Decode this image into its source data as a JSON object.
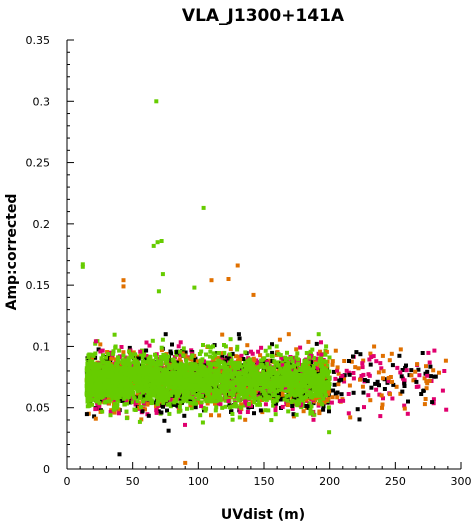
{
  "chart_data": {
    "type": "scatter",
    "title": "VLA_J1300+141A",
    "xlabel": "UVdist (m)",
    "ylabel": "Amp:corrected",
    "xlim": [
      0,
      300
    ],
    "ylim": [
      0,
      0.35
    ],
    "x_ticks": [
      0,
      50,
      100,
      150,
      200,
      250,
      300
    ],
    "x_tick_labels": [
      "0",
      "50",
      "100",
      "150",
      "200",
      "250",
      "300"
    ],
    "y_ticks": [
      0,
      0.05,
      0.1,
      0.15,
      0.2,
      0.25,
      0.3,
      0.35
    ],
    "y_tick_labels": [
      "0",
      "0.05",
      "0.1",
      "0.15",
      "0.2",
      "0.25",
      "0.3",
      "0.35"
    ],
    "grid": false,
    "colors": [
      "#000000",
      "#e0006e",
      "#e07000",
      "#66cc00"
    ],
    "distribution": {
      "x_range": [
        12,
        290
      ],
      "dense_x_range": [
        15,
        200
      ],
      "median_amp": 0.072,
      "core_amp_range": [
        0.045,
        0.1
      ]
    },
    "outliers": [
      {
        "x": 68,
        "y": 0.3,
        "color": "#66cc00"
      },
      {
        "x": 104,
        "y": 0.213,
        "color": "#66cc00"
      },
      {
        "x": 69,
        "y": 0.185,
        "color": "#66cc00"
      },
      {
        "x": 72,
        "y": 0.186,
        "color": "#66cc00"
      },
      {
        "x": 66,
        "y": 0.182,
        "color": "#66cc00"
      },
      {
        "x": 12,
        "y": 0.167,
        "color": "#66cc00"
      },
      {
        "x": 12,
        "y": 0.165,
        "color": "#66cc00"
      },
      {
        "x": 130,
        "y": 0.166,
        "color": "#e07000"
      },
      {
        "x": 73,
        "y": 0.159,
        "color": "#66cc00"
      },
      {
        "x": 43,
        "y": 0.154,
        "color": "#e07000"
      },
      {
        "x": 43,
        "y": 0.149,
        "color": "#e07000"
      },
      {
        "x": 123,
        "y": 0.155,
        "color": "#e07000"
      },
      {
        "x": 110,
        "y": 0.154,
        "color": "#e07000"
      },
      {
        "x": 97,
        "y": 0.148,
        "color": "#66cc00"
      },
      {
        "x": 70,
        "y": 0.145,
        "color": "#66cc00"
      },
      {
        "x": 142,
        "y": 0.142,
        "color": "#e07000"
      },
      {
        "x": 90,
        "y": 0.005,
        "color": "#e07000"
      },
      {
        "x": 40,
        "y": 0.012,
        "color": "#000000"
      }
    ]
  }
}
